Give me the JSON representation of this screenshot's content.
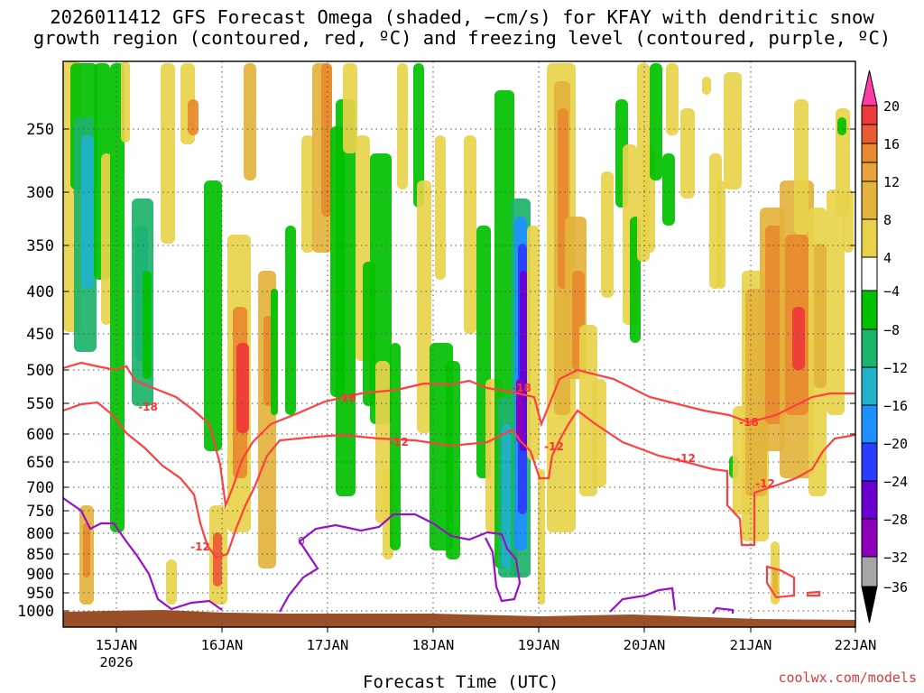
{
  "chart_data": {
    "type": "heatmap",
    "title_line1": "2026011412 GFS Forecast Omega (shaded, −cm/s) for KFAY with dendritic snow",
    "title_line2": "growth region (contoured, red, ºC) and freezing level (contoured, purple, ºC)",
    "xlabel": "Forecast Time (UTC)",
    "credit": "coolwx.com/models",
    "x_ticks": [
      "15JAN",
      "16JAN",
      "17JAN",
      "18JAN",
      "19JAN",
      "20JAN",
      "21JAN",
      "22JAN"
    ],
    "x_year_label": "2026",
    "y_ticks": [
      250,
      300,
      350,
      400,
      450,
      500,
      550,
      600,
      650,
      700,
      750,
      800,
      850,
      900,
      950,
      1000
    ],
    "ylim": [
      1000,
      200
    ],
    "colorbar_labels": [
      "20",
      "16",
      "12",
      "8",
      "4",
      "−4",
      "−8",
      "−12",
      "−16",
      "−20",
      "−24",
      "−28",
      "−32",
      "−36"
    ],
    "colorbar_colors": [
      "#ff3da8",
      "#ee3a3a",
      "#ec5a35",
      "#e8892e",
      "#e3a83a",
      "#e8d24a",
      "#ffffff",
      "#00c000",
      "#1cb36b",
      "#20b2c8",
      "#1e90ff",
      "#2a3cff",
      "#6a00d0",
      "#8b00b8",
      "#a6a6a6",
      "#000000"
    ],
    "contour_labels_red": [
      "-18",
      "-18",
      "-18",
      "-18",
      "-12",
      "-12",
      "-12",
      "-12",
      "-12"
    ],
    "contour_labels_purple": [
      "0"
    ],
    "grid": true,
    "surface_color": "#9b4f26"
  }
}
